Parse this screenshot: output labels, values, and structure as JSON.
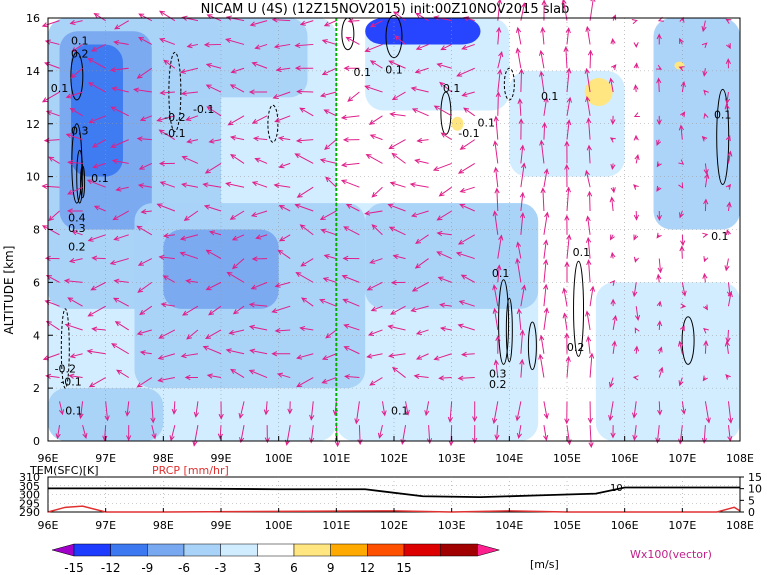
{
  "title": "NICAM U (4S) (12Z15NOV2015) init:00Z10NOV2015 slab",
  "main_plot": {
    "ylabel": "ALTITUDE [km]",
    "x_ticks": [
      "96E",
      "97E",
      "98E",
      "99E",
      "100E",
      "101E",
      "102E",
      "103E",
      "104E",
      "105E",
      "106E",
      "107E",
      "108E"
    ],
    "y_ticks": [
      "0",
      "2",
      "4",
      "6",
      "8",
      "10",
      "12",
      "14",
      "16"
    ],
    "contour_labels": [
      "0.1",
      "0.2",
      "0.1",
      "0.3",
      "0.1",
      "0.4",
      "0.3",
      "0.2",
      "-0.2",
      "-0.1",
      "0.1",
      "-0.2",
      "-0.1",
      "-0.1",
      "0.1",
      "0.1",
      "0.1",
      "-0.1",
      "0.1",
      "0.1",
      "0.1",
      "0.1",
      "0.2",
      "0.3",
      "0.2",
      "0.1",
      "0.1",
      "0.1"
    ],
    "colors": {
      "green_line": "#00b000",
      "vector": "#e0208a"
    }
  },
  "sub_panel": {
    "left_label": "TEM(SFC)[K]",
    "right_label": "PRCP [mm/hr]",
    "left_ticks": [
      "310",
      "305",
      "300",
      "295",
      "290"
    ],
    "right_ticks": [
      "15",
      "10",
      "5",
      "0"
    ],
    "x_ticks": [
      "96E",
      "97E",
      "98E",
      "99E",
      "100E",
      "101E",
      "102E",
      "103E",
      "104E",
      "105E",
      "106E",
      "107E",
      "108E"
    ],
    "inline_label": "10"
  },
  "colorbar": {
    "labels": [
      "-15",
      "-12",
      "-9",
      "-6",
      "-3",
      "3",
      "6",
      "9",
      "12",
      "15"
    ],
    "colors": [
      "#a000c8",
      "#1e3cff",
      "#3c78f0",
      "#78a8f0",
      "#a8d2f8",
      "#d0ecff",
      "#ffffff",
      "#ffe680",
      "#ffaa00",
      "#ff5000",
      "#dc0000",
      "#a00000",
      "#ff2090"
    ],
    "unit": "[m/s]",
    "vector_label": "Wx100(vector)"
  },
  "chart_data": {
    "type": "heatmap",
    "title": "NICAM U (4S) (12Z15NOV2015) init:00Z10NOV2015 slab",
    "xlabel": "",
    "ylabel": "ALTITUDE [km]",
    "xlim": [
      96,
      108
    ],
    "ylim": [
      0,
      16
    ],
    "marked_longitude": 101,
    "shading_levels": [
      -15,
      -12,
      -9,
      -6,
      -3,
      3,
      6,
      9,
      12,
      15
    ],
    "shading_units": "m/s",
    "subpanel": {
      "temperature_K": {
        "ylim": [
          290,
          310
        ],
        "x": [
          96,
          98,
          100,
          101.5,
          102.5,
          103.5,
          104.5,
          105.5,
          106,
          107,
          108
        ],
        "values": [
          303.5,
          303.5,
          303,
          303,
          299,
          298.5,
          299.5,
          300.5,
          304,
          304,
          304
        ]
      },
      "precip_mm_hr": {
        "ylim": [
          0,
          15
        ],
        "x": [
          96,
          96.3,
          96.6,
          97,
          98,
          102,
          103,
          104,
          105,
          106,
          107.6,
          107.9,
          108
        ],
        "values": [
          0,
          2,
          2.5,
          0,
          0,
          0.5,
          0,
          0.5,
          0,
          0,
          0,
          2,
          0.5
        ]
      }
    }
  }
}
